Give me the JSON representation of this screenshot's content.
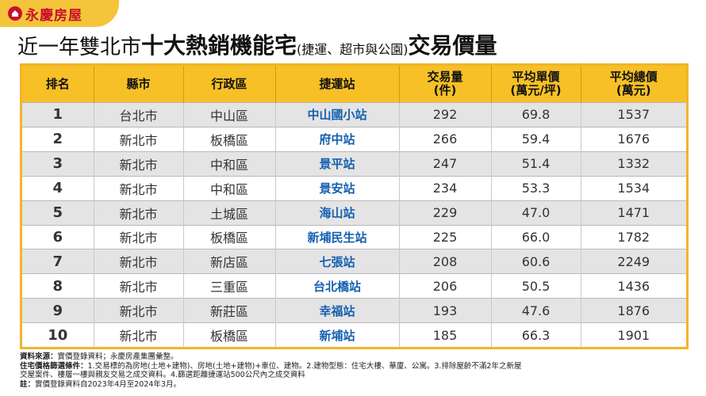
{
  "brand": {
    "logo_text": "永慶房屋",
    "brand_color": "#c8102e",
    "strip_color": "#f4c43a"
  },
  "title": {
    "part1": "近一年雙北市",
    "part2": "十大熱銷機能宅",
    "part3": "(捷運、超市與公園)",
    "part4": "交易價量"
  },
  "table": {
    "headers": {
      "rank": "排名",
      "city": "縣市",
      "district": "行政區",
      "station": "捷運站",
      "volume_1": "交易量",
      "volume_2": "(件)",
      "unit_1": "平均單價",
      "unit_2": "(萬元/坪)",
      "total_1": "平均總價",
      "total_2": "(萬元)"
    },
    "rows": [
      {
        "rank": "1",
        "city": "台北市",
        "district": "中山區",
        "station": "中山國小站",
        "volume": "292",
        "unit_price": "69.8",
        "total_price": "1537"
      },
      {
        "rank": "2",
        "city": "新北市",
        "district": "板橋區",
        "station": "府中站",
        "volume": "266",
        "unit_price": "59.4",
        "total_price": "1676"
      },
      {
        "rank": "3",
        "city": "新北市",
        "district": "中和區",
        "station": "景平站",
        "volume": "247",
        "unit_price": "51.4",
        "total_price": "1332"
      },
      {
        "rank": "4",
        "city": "新北市",
        "district": "中和區",
        "station": "景安站",
        "volume": "234",
        "unit_price": "53.3",
        "total_price": "1534"
      },
      {
        "rank": "5",
        "city": "新北市",
        "district": "土城區",
        "station": "海山站",
        "volume": "229",
        "unit_price": "47.0",
        "total_price": "1471"
      },
      {
        "rank": "6",
        "city": "新北市",
        "district": "板橋區",
        "station": "新埔民生站",
        "volume": "225",
        "unit_price": "66.0",
        "total_price": "1782"
      },
      {
        "rank": "7",
        "city": "新北市",
        "district": "新店區",
        "station": "七張站",
        "volume": "208",
        "unit_price": "60.6",
        "total_price": "2249"
      },
      {
        "rank": "8",
        "city": "新北市",
        "district": "三重區",
        "station": "台北橋站",
        "volume": "206",
        "unit_price": "50.5",
        "total_price": "1436"
      },
      {
        "rank": "9",
        "city": "新北市",
        "district": "新莊區",
        "station": "幸福站",
        "volume": "193",
        "unit_price": "47.6",
        "total_price": "1876"
      },
      {
        "rank": "10",
        "city": "新北市",
        "district": "板橋區",
        "station": "新埔站",
        "volume": "185",
        "unit_price": "66.3",
        "total_price": "1901"
      }
    ]
  },
  "notes": {
    "source_label": "資料來源：",
    "source_text": "實價登錄資料；永慶房產集團彙整。",
    "criteria_label": "住宅價格篩選條件：",
    "criteria_text_1": "1.交易標的為房地(土地+建物)、房地(土地+建物)+車位、建物。2.建物型態：住宅大樓、華廈、公寓。3.排除屋齡不滿2年之新屋",
    "criteria_text_2": "交屋案件、樓層一樓與親友交易之成交資料。4.篩選距離捷運站500公尺內之成交資料",
    "note_label": "註：",
    "note_text": "實價登錄資料自2023年4月至2024年3月。"
  }
}
